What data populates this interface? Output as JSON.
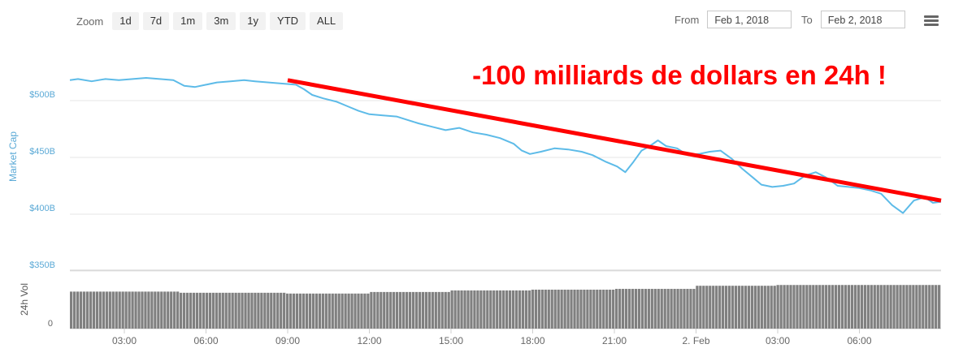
{
  "zoom": {
    "label": "Zoom",
    "buttons": [
      "1d",
      "7d",
      "1m",
      "3m",
      "1y",
      "YTD",
      "ALL"
    ]
  },
  "range": {
    "from_label": "From",
    "from_value": "Feb 1, 2018",
    "to_label": "To",
    "to_value": "Feb 2, 2018"
  },
  "colors": {
    "line": "#5dbbe8",
    "trend": "#ff0000",
    "volume": "#808080",
    "axis_text": "#666666",
    "ylabel_text": "#5aa9d6"
  },
  "icons": {
    "menu": "hamburger-menu-icon"
  },
  "chart_data": {
    "type": "line",
    "annotation": "-100 milliards de dollars en 24h !",
    "ylabel": "Market Cap",
    "volume_label": "24h Vol",
    "y_ticks": [
      "$500B",
      "$450B",
      "$400B",
      "$350B"
    ],
    "y_tick_values": [
      500,
      450,
      400,
      350
    ],
    "volume_ticks": [
      "0"
    ],
    "x_ticks": [
      "03:00",
      "06:00",
      "09:00",
      "12:00",
      "15:00",
      "18:00",
      "21:00",
      "2. Feb",
      "03:00",
      "06:00"
    ],
    "x_tick_hours": [
      3,
      6,
      9,
      12,
      15,
      18,
      21,
      24,
      27,
      30
    ],
    "x_range_hours": [
      1,
      33
    ],
    "ylim": [
      350,
      550
    ],
    "grid": true,
    "series": [
      {
        "values": [
          [
            1.0,
            518
          ],
          [
            1.3,
            519
          ],
          [
            1.8,
            517
          ],
          [
            2.3,
            519
          ],
          [
            2.8,
            518
          ],
          [
            3.3,
            519
          ],
          [
            3.8,
            520
          ],
          [
            4.3,
            519
          ],
          [
            4.8,
            518
          ],
          [
            5.2,
            513
          ],
          [
            5.6,
            512
          ],
          [
            6.0,
            514
          ],
          [
            6.4,
            516
          ],
          [
            6.9,
            517
          ],
          [
            7.4,
            518
          ],
          [
            7.8,
            517
          ],
          [
            8.3,
            516
          ],
          [
            8.8,
            515
          ],
          [
            9.3,
            514
          ],
          [
            9.6,
            510
          ],
          [
            9.9,
            505
          ],
          [
            10.3,
            502
          ],
          [
            10.8,
            499
          ],
          [
            11.2,
            495
          ],
          [
            11.6,
            491
          ],
          [
            12.0,
            488
          ],
          [
            12.5,
            487
          ],
          [
            13.0,
            486
          ],
          [
            13.4,
            483
          ],
          [
            13.8,
            480
          ],
          [
            14.3,
            477
          ],
          [
            14.8,
            474
          ],
          [
            15.3,
            476
          ],
          [
            15.8,
            472
          ],
          [
            16.3,
            470
          ],
          [
            16.8,
            467
          ],
          [
            17.3,
            462
          ],
          [
            17.6,
            456
          ],
          [
            17.9,
            453
          ],
          [
            18.3,
            455
          ],
          [
            18.8,
            458
          ],
          [
            19.3,
            457
          ],
          [
            19.8,
            455
          ],
          [
            20.2,
            452
          ],
          [
            20.7,
            446
          ],
          [
            21.1,
            442
          ],
          [
            21.4,
            437
          ],
          [
            21.7,
            446
          ],
          [
            22.0,
            456
          ],
          [
            22.3,
            460
          ],
          [
            22.6,
            465
          ],
          [
            22.9,
            460
          ],
          [
            23.3,
            458
          ],
          [
            23.7,
            452
          ],
          [
            24.1,
            453
          ],
          [
            24.5,
            455
          ],
          [
            24.9,
            456
          ],
          [
            25.3,
            449
          ],
          [
            25.7,
            440
          ],
          [
            26.1,
            432
          ],
          [
            26.4,
            426
          ],
          [
            26.8,
            424
          ],
          [
            27.2,
            425
          ],
          [
            27.6,
            427
          ],
          [
            28.0,
            434
          ],
          [
            28.4,
            437
          ],
          [
            28.8,
            432
          ],
          [
            29.2,
            425
          ],
          [
            29.6,
            424
          ],
          [
            30.0,
            423
          ],
          [
            30.4,
            421
          ],
          [
            30.8,
            418
          ],
          [
            31.2,
            408
          ],
          [
            31.6,
            401
          ],
          [
            32.0,
            412
          ],
          [
            32.4,
            415
          ],
          [
            32.7,
            410
          ],
          [
            33.0,
            411
          ]
        ]
      }
    ],
    "trend_line": [
      [
        9.0,
        518
      ],
      [
        33.0,
        412
      ]
    ],
    "volume": [
      [
        1.0,
        0.95
      ],
      [
        5.0,
        0.92
      ],
      [
        9.0,
        0.9
      ],
      [
        12.0,
        0.94
      ],
      [
        15.0,
        0.98
      ],
      [
        18.0,
        1.0
      ],
      [
        21.0,
        1.02
      ],
      [
        24.0,
        1.1
      ],
      [
        27.0,
        1.12
      ],
      [
        30.0,
        1.12
      ],
      [
        31.9,
        1.12
      ],
      [
        33.0,
        1.17
      ]
    ],
    "volume_max": 1.5
  }
}
